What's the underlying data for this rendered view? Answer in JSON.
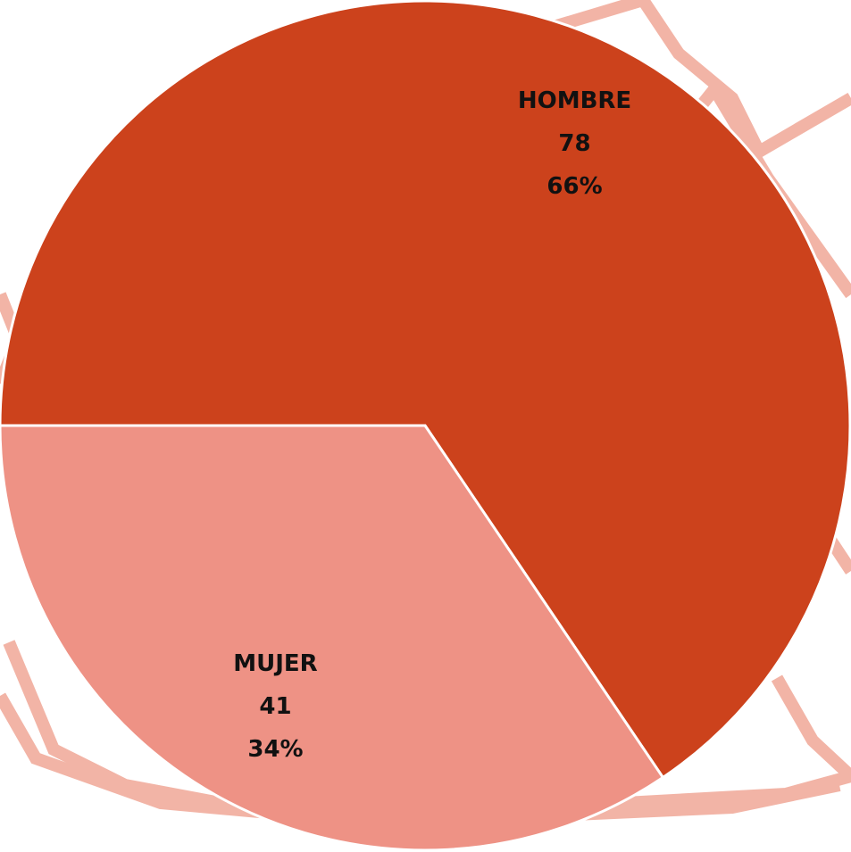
{
  "chart_data": {
    "type": "pie",
    "categories": [
      "HOMBRE",
      "MUJER"
    ],
    "values": [
      78,
      41
    ],
    "percent_labels": [
      "66%",
      "34%"
    ],
    "colors": [
      "#cc421c",
      "#ee9285"
    ]
  }
}
